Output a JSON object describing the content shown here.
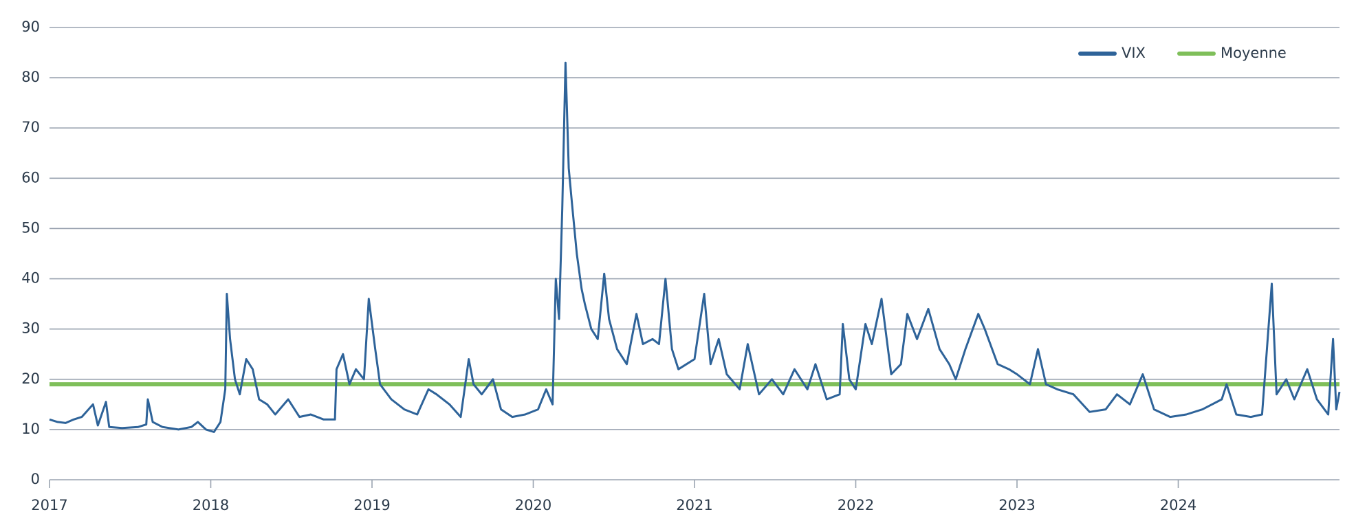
{
  "chart_data": {
    "type": "line",
    "xlim": [
      2017,
      2025
    ],
    "xticks": [
      2017,
      2018,
      2019,
      2020,
      2021,
      2022,
      2023,
      2024
    ],
    "ylim": [
      0,
      90
    ],
    "yticks": [
      0,
      10,
      20,
      30,
      40,
      50,
      60,
      70,
      80,
      90
    ],
    "grid": true,
    "legend": "top-right",
    "series": [
      {
        "name": "VIX",
        "color": "#2e6399",
        "x": [
          2017.0,
          2017.05,
          2017.1,
          2017.15,
          2017.2,
          2017.27,
          2017.3,
          2017.35,
          2017.37,
          2017.45,
          2017.55,
          2017.6,
          2017.61,
          2017.64,
          2017.7,
          2017.8,
          2017.88,
          2017.92,
          2017.97,
          2018.02,
          2018.06,
          2018.09,
          2018.1,
          2018.12,
          2018.15,
          2018.18,
          2018.22,
          2018.26,
          2018.3,
          2018.35,
          2018.4,
          2018.48,
          2018.55,
          2018.62,
          2018.7,
          2018.77,
          2018.78,
          2018.82,
          2018.86,
          2018.9,
          2018.95,
          2018.98,
          2019.02,
          2019.05,
          2019.12,
          2019.2,
          2019.28,
          2019.35,
          2019.4,
          2019.48,
          2019.55,
          2019.6,
          2019.63,
          2019.68,
          2019.75,
          2019.8,
          2019.87,
          2019.95,
          2020.03,
          2020.08,
          2020.12,
          2020.14,
          2020.16,
          2020.18,
          2020.2,
          2020.22,
          2020.24,
          2020.27,
          2020.3,
          2020.32,
          2020.36,
          2020.4,
          2020.44,
          2020.47,
          2020.52,
          2020.58,
          2020.64,
          2020.68,
          2020.74,
          2020.78,
          2020.82,
          2020.86,
          2020.9,
          2020.95,
          2021.0,
          2021.06,
          2021.1,
          2021.15,
          2021.2,
          2021.28,
          2021.33,
          2021.4,
          2021.48,
          2021.55,
          2021.62,
          2021.7,
          2021.75,
          2021.82,
          2021.9,
          2021.92,
          2021.96,
          2022.0,
          2022.06,
          2022.1,
          2022.16,
          2022.22,
          2022.28,
          2022.32,
          2022.38,
          2022.45,
          2022.52,
          2022.58,
          2022.62,
          2022.68,
          2022.76,
          2022.8,
          2022.88,
          2022.95,
          2023.0,
          2023.08,
          2023.13,
          2023.18,
          2023.25,
          2023.35,
          2023.45,
          2023.55,
          2023.62,
          2023.7,
          2023.78,
          2023.85,
          2023.95,
          2024.05,
          2024.15,
          2024.27,
          2024.3,
          2024.36,
          2024.45,
          2024.52,
          2024.58,
          2024.61,
          2024.67,
          2024.72,
          2024.8,
          2024.86,
          2024.93,
          2024.96,
          2024.98,
          2025.0
        ],
        "values": [
          12,
          11.5,
          11.3,
          12,
          12.5,
          15,
          10.8,
          15.5,
          10.5,
          10.3,
          10.5,
          11,
          16,
          11.5,
          10.5,
          10,
          10.5,
          11.5,
          10,
          9.5,
          11.5,
          18,
          37,
          28,
          20,
          17,
          24,
          22,
          16,
          15,
          13,
          16,
          12.5,
          13,
          12,
          12,
          22,
          25,
          19,
          22,
          20,
          36,
          26,
          19,
          16,
          14,
          13,
          18,
          17,
          15,
          12.5,
          24,
          19,
          17,
          20,
          14,
          12.5,
          13,
          14,
          18,
          15,
          40,
          32,
          54,
          83,
          62,
          55,
          45,
          38,
          35,
          30,
          28,
          41,
          32,
          26,
          23,
          33,
          27,
          28,
          27,
          40,
          26,
          22,
          23,
          24,
          37,
          23,
          28,
          21,
          18,
          27,
          17,
          20,
          17,
          22,
          18,
          23,
          16,
          17,
          31,
          20,
          18,
          31,
          27,
          36,
          21,
          23,
          33,
          28,
          34,
          26,
          23,
          20,
          26,
          33,
          30,
          23,
          22,
          21,
          19,
          26,
          19,
          18,
          17,
          13.5,
          14,
          17,
          15,
          21,
          14,
          12.5,
          13,
          14,
          16,
          19,
          13,
          12.5,
          13,
          39,
          17,
          20,
          16,
          22,
          16,
          13,
          28,
          14,
          17.5
        ]
      },
      {
        "name": "Moyenne",
        "color": "#7fbf5a",
        "x": [
          2017,
          2025
        ],
        "values": [
          19,
          19
        ]
      }
    ]
  }
}
